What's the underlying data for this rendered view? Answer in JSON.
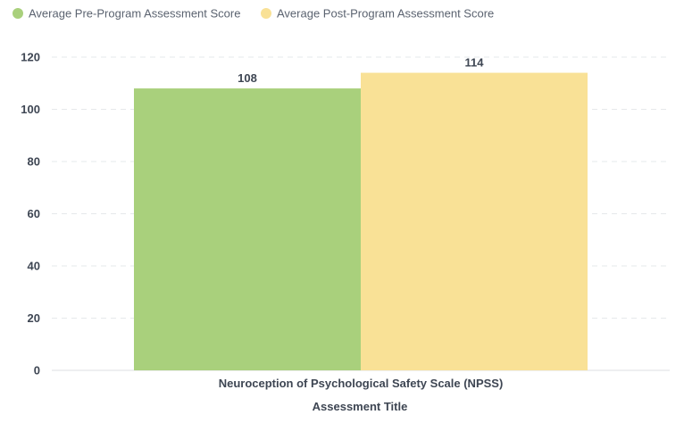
{
  "chart_data": {
    "type": "bar",
    "categories": [
      "Neuroception of Psychological Safety Scale (NPSS)"
    ],
    "series": [
      {
        "name": "Average Pre-Program Assessment Score",
        "values": [
          108
        ],
        "color": "#a9d07c"
      },
      {
        "name": "Average Post-Program Assessment Score",
        "values": [
          114
        ],
        "color": "#f9e196"
      }
    ],
    "xlabel": "Assessment Title",
    "ylabel": "",
    "ylim": [
      0,
      120
    ],
    "yticks": [
      0,
      20,
      40,
      60,
      80,
      100,
      120
    ],
    "grid": true,
    "legend": "top-left",
    "show_data_labels": true
  }
}
